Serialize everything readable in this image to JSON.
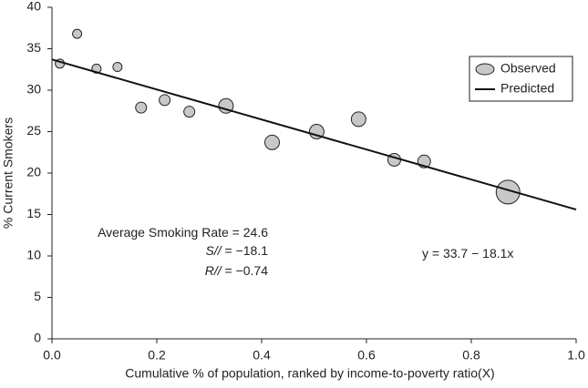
{
  "chart_data": {
    "type": "scatter",
    "x_label": "Cumulative % of population, ranked by income-to-poverty ratio(X)",
    "y_label": "% Current Smokers",
    "xlim": [
      0,
      1
    ],
    "ylim": [
      0,
      40
    ],
    "xticks": [
      {
        "value": 0,
        "label": "0.0"
      },
      0.2,
      0.4,
      0.6,
      0.8,
      {
        "value": 1,
        "label": "1.0"
      }
    ],
    "yticks": [
      0,
      5,
      10,
      15,
      20,
      25,
      30,
      35,
      40
    ],
    "grid": false,
    "legend": "upper right",
    "series": [
      {
        "name": "Observed",
        "color": "#c8c8c8",
        "x": [
          0.015,
          0.048,
          0.085,
          0.125,
          0.17,
          0.215,
          0.262,
          0.332,
          0.42,
          0.505,
          0.585,
          0.653,
          0.71,
          0.87
        ],
        "values": [
          33.2,
          36.8,
          32.6,
          32.8,
          27.9,
          28.8,
          27.4,
          28.1,
          23.7,
          25.0,
          26.5,
          21.6,
          21.4,
          17.7
        ],
        "sizes": [
          5,
          5,
          5,
          5,
          6,
          6,
          6,
          8,
          8,
          8,
          8,
          7,
          7,
          13
        ]
      },
      {
        "name": "Predicted",
        "color": "#111111",
        "line": true,
        "x": [
          0,
          1
        ],
        "values": [
          33.7,
          15.6
        ]
      }
    ],
    "annotations": [
      {
        "text": "Average Smoking Rate = 24.6"
      },
      {
        "label": "S//",
        "text": " = −18.1"
      },
      {
        "label": "R//",
        "text": " = −0.74"
      },
      {
        "text": "y = 33.7 − 18.1x"
      }
    ]
  }
}
